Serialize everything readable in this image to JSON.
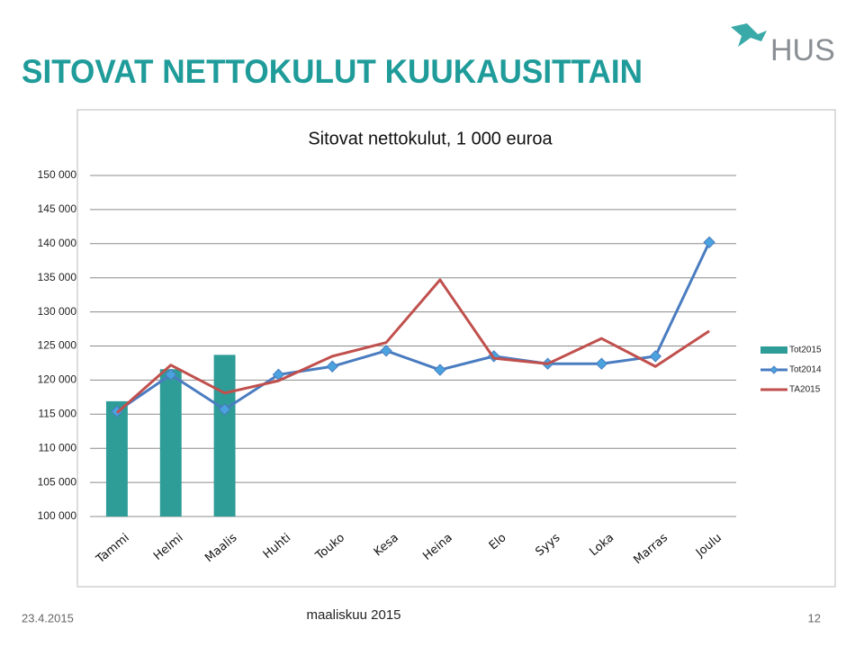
{
  "slide": {
    "title": "SITOVAT NETTOKULUT KUUKAUSITTAIN",
    "logo": "HUS",
    "date": "23.4.2015",
    "footer": "maaliskuu 2015",
    "page": "12"
  },
  "chart_data": {
    "type": "bar-line",
    "title": "Sitovat nettokulut, 1 000 euroa",
    "categories": [
      "Tammi",
      "Helmi",
      "Maalis",
      "Huhti",
      "Touko",
      "Kesa",
      "Heina",
      "Elo",
      "Syys",
      "Loka",
      "Marras",
      "Joulu"
    ],
    "series": [
      {
        "name": "Tot2015",
        "kind": "bar",
        "color": "#2e9c97",
        "values": [
          116900,
          121600,
          123700,
          null,
          null,
          null,
          null,
          null,
          null,
          null,
          null,
          null
        ]
      },
      {
        "name": "Tot2014",
        "kind": "line",
        "marker": "diamond",
        "color": "#4a7cc0",
        "values": [
          115400,
          120800,
          115700,
          120800,
          122000,
          124300,
          121500,
          123500,
          122400,
          122400,
          123500,
          140200
        ]
      },
      {
        "name": "TA2015",
        "kind": "line",
        "color": "#c0504d",
        "values": [
          115200,
          122200,
          118100,
          119900,
          123500,
          125500,
          134700,
          123200,
          122400,
          126100,
          122000,
          127200
        ]
      }
    ],
    "ylim": [
      100000,
      150000
    ],
    "yticks": [
      {
        "value": 100000,
        "label": "100 000"
      },
      {
        "value": 105000,
        "label": "105 000"
      },
      {
        "value": 110000,
        "label": "110 000"
      },
      {
        "value": 115000,
        "label": "115 000"
      },
      {
        "value": 120000,
        "label": "120 000"
      },
      {
        "value": 125000,
        "label": "125 000"
      },
      {
        "value": 130000,
        "label": "130 000"
      },
      {
        "value": 135000,
        "label": "135 000"
      },
      {
        "value": 140000,
        "label": "140 000"
      },
      {
        "value": 145000,
        "label": "145 000"
      },
      {
        "value": 150000,
        "label": "150 000"
      }
    ],
    "grid": true,
    "legend": "right"
  }
}
